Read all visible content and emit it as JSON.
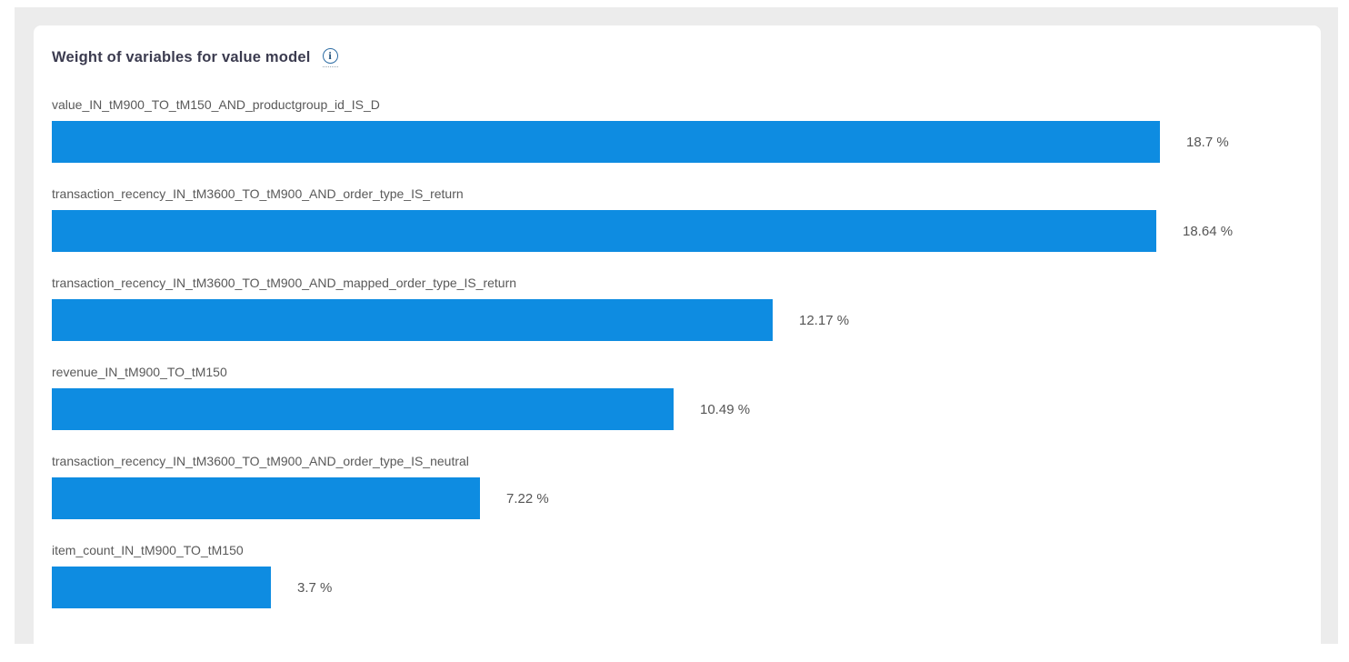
{
  "card": {
    "title": "Weight of variables for value model"
  },
  "icons": {
    "info_glyph": "i"
  },
  "colors": {
    "bar": "#0e8ce1",
    "panel_background": "#ececec",
    "card_background": "#ffffff",
    "title_text": "#3b3b4f",
    "label_text": "#595959",
    "value_text": "#555555",
    "info_icon": "#2e6da4"
  },
  "chart_data": {
    "type": "bar",
    "orientation": "horizontal",
    "title": "Weight of variables for value model",
    "value_unit": "%",
    "xlim": [
      0,
      18.7
    ],
    "grid": false,
    "legend": false,
    "categories": [
      "value_IN_tM900_TO_tM150_AND_productgroup_id_IS_D",
      "transaction_recency_IN_tM3600_TO_tM900_AND_order_type_IS_return",
      "transaction_recency_IN_tM3600_TO_tM900_AND_mapped_order_type_IS_return",
      "revenue_IN_tM900_TO_tM150",
      "transaction_recency_IN_tM3600_TO_tM900_AND_order_type_IS_neutral",
      "item_count_IN_tM900_TO_tM150"
    ],
    "values": [
      18.7,
      18.64,
      12.17,
      10.49,
      7.22,
      3.7
    ],
    "items": [
      {
        "label": "value_IN_tM900_TO_tM150_AND_productgroup_id_IS_D",
        "value": 18.7,
        "value_label": "18.7 %"
      },
      {
        "label": "transaction_recency_IN_tM3600_TO_tM900_AND_order_type_IS_return",
        "value": 18.64,
        "value_label": "18.64 %"
      },
      {
        "label": "transaction_recency_IN_tM3600_TO_tM900_AND_mapped_order_type_IS_return",
        "value": 12.17,
        "value_label": "12.17 %"
      },
      {
        "label": "revenue_IN_tM900_TO_tM150",
        "value": 10.49,
        "value_label": "10.49 %"
      },
      {
        "label": "transaction_recency_IN_tM3600_TO_tM900_AND_order_type_IS_neutral",
        "value": 7.22,
        "value_label": "7.22 %"
      },
      {
        "label": "item_count_IN_tM900_TO_tM150",
        "value": 3.7,
        "value_label": "3.7 %"
      }
    ]
  }
}
